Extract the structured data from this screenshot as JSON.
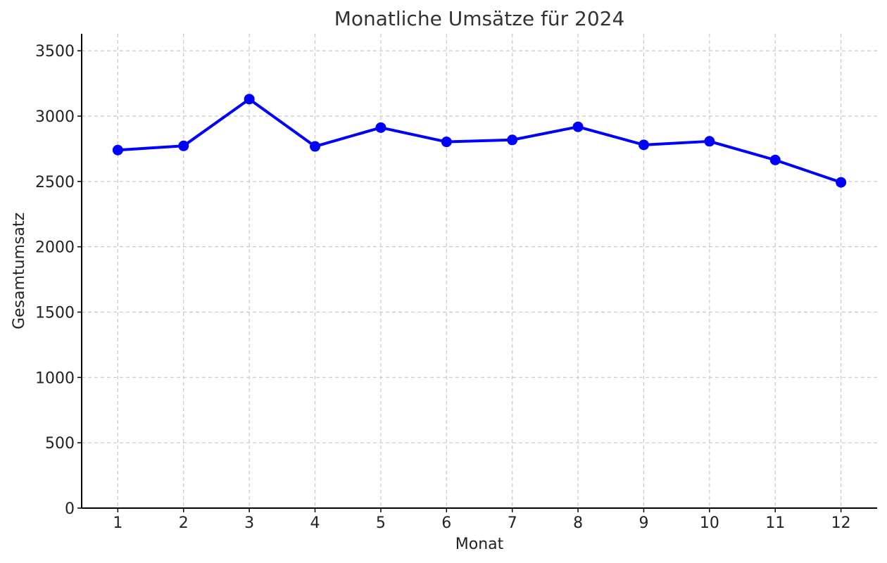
{
  "chart_data": {
    "type": "line",
    "title": "Monatliche Umsätze für 2024",
    "xlabel": "Monat",
    "ylabel": "Gesamtumsatz",
    "x": [
      1,
      2,
      3,
      4,
      5,
      6,
      7,
      8,
      9,
      10,
      11,
      12
    ],
    "x_tick_labels": [
      "1",
      "2",
      "3",
      "4",
      "5",
      "6",
      "7",
      "8",
      "9",
      "10",
      "11",
      "12"
    ],
    "y_ticks": [
      0,
      500,
      1000,
      1500,
      2000,
      2500,
      3000,
      3500
    ],
    "y_tick_labels": [
      "0",
      "500",
      "1000",
      "1500",
      "2000",
      "2500",
      "3000",
      "3500"
    ],
    "xlim": [
      0.45,
      12.55
    ],
    "ylim": [
      0,
      3630
    ],
    "grid": true,
    "series": [
      {
        "values": [
          2740,
          2772,
          3130,
          2768,
          2912,
          2803,
          2818,
          2918,
          2780,
          2807,
          2664,
          2493
        ],
        "color": "#0000ff",
        "marker": "circle"
      }
    ]
  }
}
